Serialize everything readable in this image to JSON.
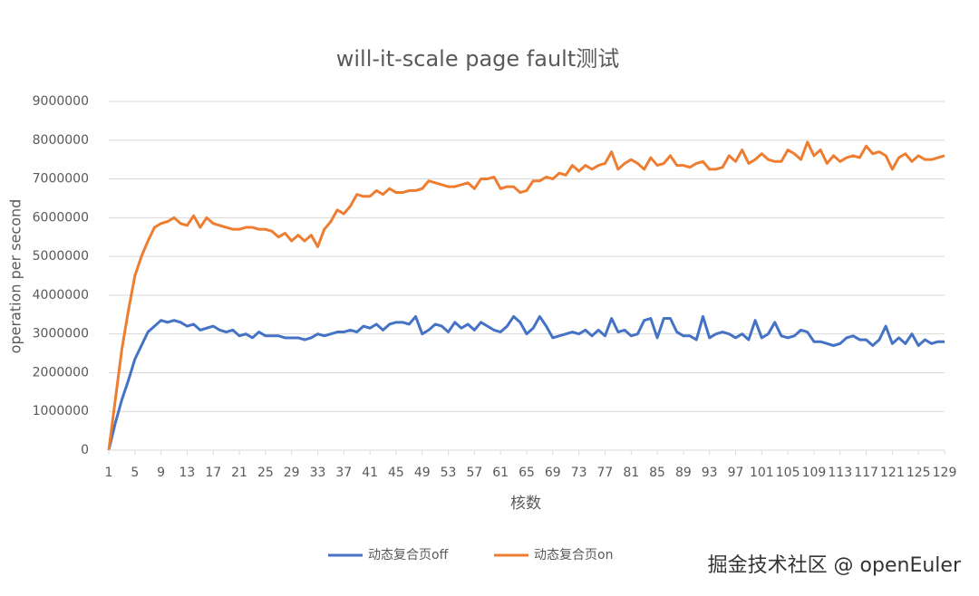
{
  "chart_data": {
    "type": "line",
    "title": "will-it-scale page fault测试",
    "x_label": "核数",
    "y_label": "operation per second",
    "x": [
      1,
      2,
      3,
      4,
      5,
      6,
      7,
      8,
      9,
      10,
      11,
      12,
      13,
      14,
      15,
      16,
      17,
      18,
      19,
      20,
      21,
      22,
      23,
      24,
      25,
      26,
      27,
      28,
      29,
      30,
      31,
      32,
      33,
      34,
      35,
      36,
      37,
      38,
      39,
      40,
      41,
      42,
      43,
      44,
      45,
      46,
      47,
      48,
      49,
      50,
      51,
      52,
      53,
      54,
      55,
      56,
      57,
      58,
      59,
      60,
      61,
      62,
      63,
      64,
      65,
      66,
      67,
      68,
      69,
      70,
      71,
      72,
      73,
      74,
      75,
      76,
      77,
      78,
      79,
      80,
      81,
      82,
      83,
      84,
      85,
      86,
      87,
      88,
      89,
      90,
      91,
      92,
      93,
      94,
      95,
      96,
      97,
      98,
      99,
      100,
      101,
      102,
      103,
      104,
      105,
      106,
      107,
      108,
      109,
      110,
      111,
      112,
      113,
      114,
      115,
      116,
      117,
      118,
      119,
      120,
      121,
      122,
      123,
      124,
      125,
      126,
      127,
      128,
      129
    ],
    "xlim": [
      1,
      129
    ],
    "xticks": [
      1,
      5,
      9,
      13,
      17,
      21,
      25,
      29,
      33,
      37,
      41,
      45,
      49,
      53,
      57,
      61,
      65,
      69,
      73,
      77,
      81,
      85,
      89,
      93,
      97,
      101,
      105,
      109,
      113,
      117,
      121,
      125,
      129
    ],
    "ylim": [
      0,
      9000000
    ],
    "yticks": [
      0,
      1000000,
      2000000,
      3000000,
      4000000,
      5000000,
      6000000,
      7000000,
      8000000,
      9000000
    ],
    "grid": true,
    "legend": "bottom",
    "series": [
      {
        "name": "动态复合页off",
        "color": "#4472c4",
        "values": [
          0,
          700000,
          1300000,
          1800000,
          2350000,
          2700000,
          3050000,
          3200000,
          3350000,
          3300000,
          3350000,
          3300000,
          3200000,
          3250000,
          3100000,
          3150000,
          3200000,
          3100000,
          3050000,
          3100000,
          2950000,
          3000000,
          2900000,
          3050000,
          2950000,
          2950000,
          2950000,
          2900000,
          2900000,
          2900000,
          2850000,
          2900000,
          3000000,
          2950000,
          3000000,
          3050000,
          3050000,
          3100000,
          3050000,
          3200000,
          3150000,
          3250000,
          3100000,
          3250000,
          3300000,
          3300000,
          3250000,
          3450000,
          3000000,
          3100000,
          3250000,
          3200000,
          3050000,
          3300000,
          3150000,
          3250000,
          3100000,
          3300000,
          3200000,
          3100000,
          3050000,
          3200000,
          3450000,
          3300000,
          3000000,
          3150000,
          3450000,
          3200000,
          2900000,
          2950000,
          3000000,
          3050000,
          3000000,
          3100000,
          2950000,
          3100000,
          2950000,
          3400000,
          3050000,
          3100000,
          2950000,
          3000000,
          3350000,
          3400000,
          2900000,
          3400000,
          3400000,
          3050000,
          2950000,
          2950000,
          2850000,
          3450000,
          2900000,
          3000000,
          3050000,
          3000000,
          2900000,
          3000000,
          2850000,
          3350000,
          2900000,
          3000000,
          3300000,
          2950000,
          2900000,
          2950000,
          3100000,
          3050000,
          2800000,
          2800000,
          2750000,
          2700000,
          2750000,
          2900000,
          2950000,
          2850000,
          2850000,
          2700000,
          2850000,
          3200000,
          2750000,
          2900000,
          2750000,
          3000000,
          2700000,
          2850000,
          2750000,
          2800000,
          2800000
        ]
      },
      {
        "name": "动态复合页on",
        "color": "#ed7d31",
        "values": [
          0,
          1300000,
          2600000,
          3600000,
          4500000,
          5000000,
          5400000,
          5750000,
          5850000,
          5900000,
          6000000,
          5850000,
          5800000,
          6050000,
          5750000,
          6000000,
          5850000,
          5800000,
          5750000,
          5700000,
          5700000,
          5750000,
          5750000,
          5700000,
          5700000,
          5650000,
          5500000,
          5600000,
          5400000,
          5550000,
          5400000,
          5550000,
          5250000,
          5700000,
          5900000,
          6200000,
          6100000,
          6300000,
          6600000,
          6550000,
          6550000,
          6700000,
          6600000,
          6750000,
          6650000,
          6650000,
          6700000,
          6700000,
          6750000,
          6950000,
          6900000,
          6850000,
          6800000,
          6800000,
          6850000,
          6900000,
          6750000,
          7000000,
          7000000,
          7050000,
          6750000,
          6800000,
          6800000,
          6650000,
          6700000,
          6950000,
          6950000,
          7050000,
          7000000,
          7150000,
          7100000,
          7350000,
          7200000,
          7350000,
          7250000,
          7350000,
          7400000,
          7700000,
          7250000,
          7400000,
          7500000,
          7400000,
          7250000,
          7550000,
          7350000,
          7400000,
          7600000,
          7350000,
          7350000,
          7300000,
          7400000,
          7450000,
          7250000,
          7250000,
          7300000,
          7600000,
          7450000,
          7750000,
          7400000,
          7500000,
          7650000,
          7500000,
          7450000,
          7450000,
          7750000,
          7650000,
          7500000,
          7950000,
          7600000,
          7750000,
          7400000,
          7600000,
          7450000,
          7550000,
          7600000,
          7550000,
          7850000,
          7650000,
          7700000,
          7600000,
          7250000,
          7550000,
          7650000,
          7450000,
          7600000,
          7500000,
          7500000,
          7550000,
          7600000
        ]
      }
    ],
    "watermark": "掘金技术社区 @ openEuler"
  }
}
